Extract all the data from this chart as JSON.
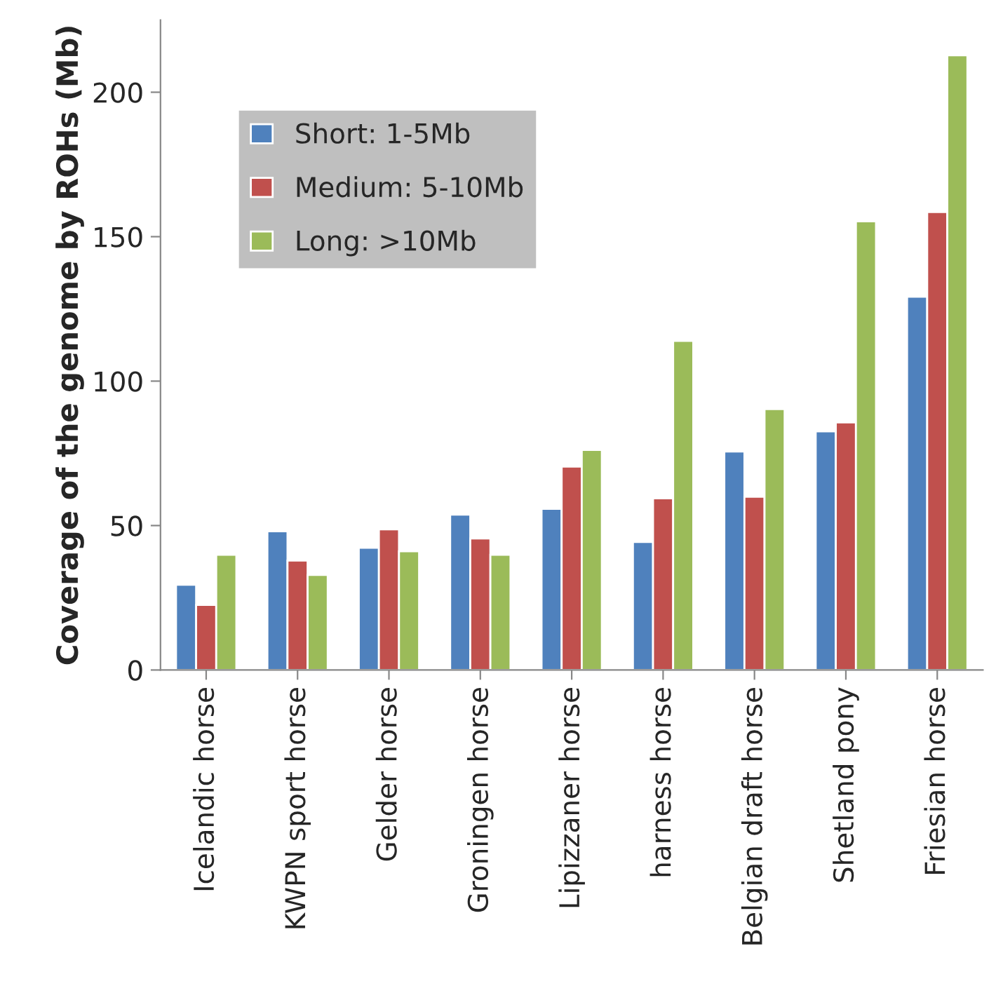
{
  "chart_data": {
    "type": "bar",
    "ylabel": "Coverage of the genome by ROHs (Mb)",
    "categories": [
      "Icelandic horse",
      "KWPN sport horse",
      "Gelder horse",
      "Groningen horse",
      "Lipizzaner horse",
      "harness horse",
      "Belgian draft horse",
      "Shetland pony",
      "Friesian horse"
    ],
    "series": [
      {
        "name": "Short: 1-5Mb",
        "color": "#4f81bd",
        "values": [
          29.5,
          48,
          42.3,
          53.8,
          55.8,
          44.3,
          75.6,
          82.6,
          129.2
        ]
      },
      {
        "name": "Medium: 5-10Mb",
        "color": "#c0504d",
        "values": [
          22.5,
          37.9,
          48.7,
          45.5,
          70.4,
          59.4,
          60,
          85.7,
          158.5
        ]
      },
      {
        "name": "Long: >10Mb",
        "color": "#9bbb59",
        "values": [
          39.9,
          32.9,
          41.1,
          39.9,
          76.2,
          113.9,
          90.3,
          155.3,
          212.8
        ]
      }
    ],
    "ylim": [
      0,
      225
    ],
    "yticks": [
      0,
      50,
      100,
      150,
      200
    ],
    "grid": false,
    "legend": "top left"
  }
}
